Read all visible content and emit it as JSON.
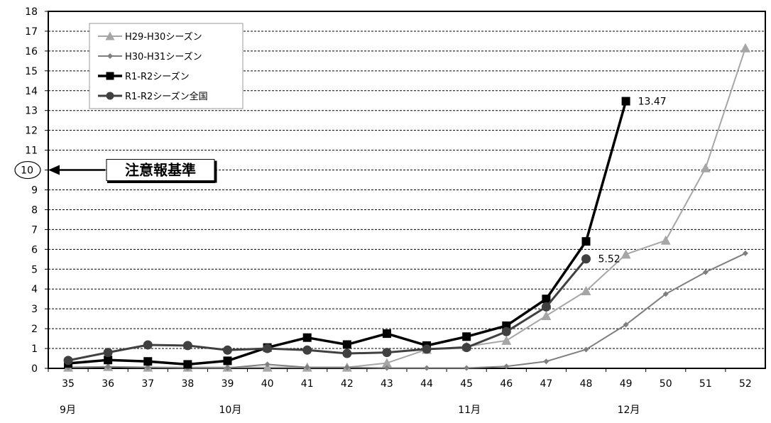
{
  "chart_data": {
    "type": "line",
    "categories": [
      "35",
      "36",
      "37",
      "38",
      "39",
      "40",
      "41",
      "42",
      "43",
      "44",
      "45",
      "46",
      "47",
      "48",
      "49",
      "50",
      "51",
      "52"
    ],
    "y_ticks": [
      "0",
      "1",
      "2",
      "3",
      "4",
      "5",
      "6",
      "7",
      "8",
      "9",
      "10",
      "11",
      "12",
      "13",
      "14",
      "15",
      "16",
      "17",
      "18"
    ],
    "ylim": [
      0,
      18
    ],
    "grid": true,
    "legend_position": "top-left",
    "month_labels": [
      {
        "label": "9月",
        "at": "35"
      },
      {
        "label": "10月",
        "at": "39"
      },
      {
        "label": "11月",
        "at": "45"
      },
      {
        "label": "12月",
        "at": "49"
      }
    ],
    "threshold": {
      "value": 10,
      "tick_label": "10",
      "label": "注意報基準"
    },
    "series": [
      {
        "name": "H29-H30シーズン",
        "marker": "triangle",
        "color": "#a6a6a6",
        "values": [
          0.05,
          0.08,
          0.05,
          0.05,
          0.05,
          0.05,
          0.05,
          0.05,
          0.27,
          0.95,
          1.1,
          1.4,
          2.65,
          3.9,
          5.75,
          6.45,
          10.1,
          16.15
        ]
      },
      {
        "name": "H30-H31シーズン",
        "marker": "diamond",
        "color": "#7f7f7f",
        "values": [
          0.05,
          0.08,
          0.05,
          0.02,
          0.02,
          0.2,
          0.05,
          0.05,
          0.02,
          0.02,
          0.02,
          0.1,
          0.35,
          0.95,
          2.2,
          3.75,
          4.85,
          5.8
        ]
      },
      {
        "name": "R1-R2シーズン",
        "marker": "square",
        "color": "#000000",
        "values": [
          0.25,
          0.42,
          0.35,
          0.2,
          0.38,
          1.05,
          1.55,
          1.2,
          1.75,
          1.15,
          1.6,
          2.15,
          3.5,
          6.4,
          13.47,
          null,
          null,
          null
        ]
      },
      {
        "name": "R1-R2シーズン全国",
        "marker": "circle",
        "color": "#404040",
        "values": [
          0.4,
          0.8,
          1.18,
          1.15,
          0.92,
          1.0,
          0.92,
          0.75,
          0.8,
          0.97,
          1.05,
          1.85,
          3.1,
          5.52,
          null,
          null,
          null,
          null
        ]
      }
    ],
    "data_labels": [
      {
        "series": 2,
        "index": 14,
        "text": "13.47"
      },
      {
        "series": 3,
        "index": 13,
        "text": "5.52"
      }
    ]
  }
}
